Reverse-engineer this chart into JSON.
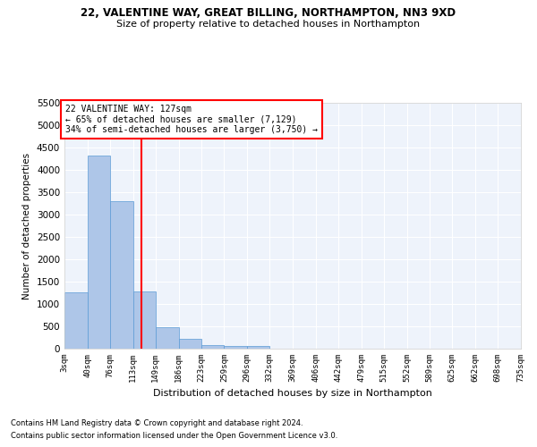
{
  "title1": "22, VALENTINE WAY, GREAT BILLING, NORTHAMPTON, NN3 9XD",
  "title2": "Size of property relative to detached houses in Northampton",
  "xlabel": "Distribution of detached houses by size in Northampton",
  "ylabel": "Number of detached properties",
  "footnote1": "Contains HM Land Registry data © Crown copyright and database right 2024.",
  "footnote2": "Contains public sector information licensed under the Open Government Licence v3.0.",
  "annotation_line1": "22 VALENTINE WAY: 127sqm",
  "annotation_line2": "← 65% of detached houses are smaller (7,129)",
  "annotation_line3": "34% of semi-detached houses are larger (3,750) →",
  "property_size": 127,
  "bar_color": "#aec6e8",
  "bar_edge_color": "#5b9bd5",
  "line_color": "red",
  "background_color": "#eef3fb",
  "grid_color": "#ffffff",
  "bin_edges": [
    3,
    40,
    76,
    113,
    149,
    186,
    223,
    259,
    296,
    332,
    369,
    406,
    442,
    479,
    515,
    552,
    589,
    625,
    662,
    698,
    735
  ],
  "bin_labels": [
    "3sqm",
    "40sqm",
    "76sqm",
    "113sqm",
    "149sqm",
    "186sqm",
    "223sqm",
    "259sqm",
    "296sqm",
    "332sqm",
    "369sqm",
    "406sqm",
    "442sqm",
    "479sqm",
    "515sqm",
    "552sqm",
    "589sqm",
    "625sqm",
    "662sqm",
    "698sqm",
    "735sqm"
  ],
  "bar_heights": [
    1270,
    4330,
    3300,
    1280,
    490,
    215,
    90,
    60,
    55,
    0,
    0,
    0,
    0,
    0,
    0,
    0,
    0,
    0,
    0,
    0
  ],
  "ylim": [
    0,
    5500
  ],
  "yticks": [
    0,
    500,
    1000,
    1500,
    2000,
    2500,
    3000,
    3500,
    4000,
    4500,
    5000,
    5500
  ]
}
